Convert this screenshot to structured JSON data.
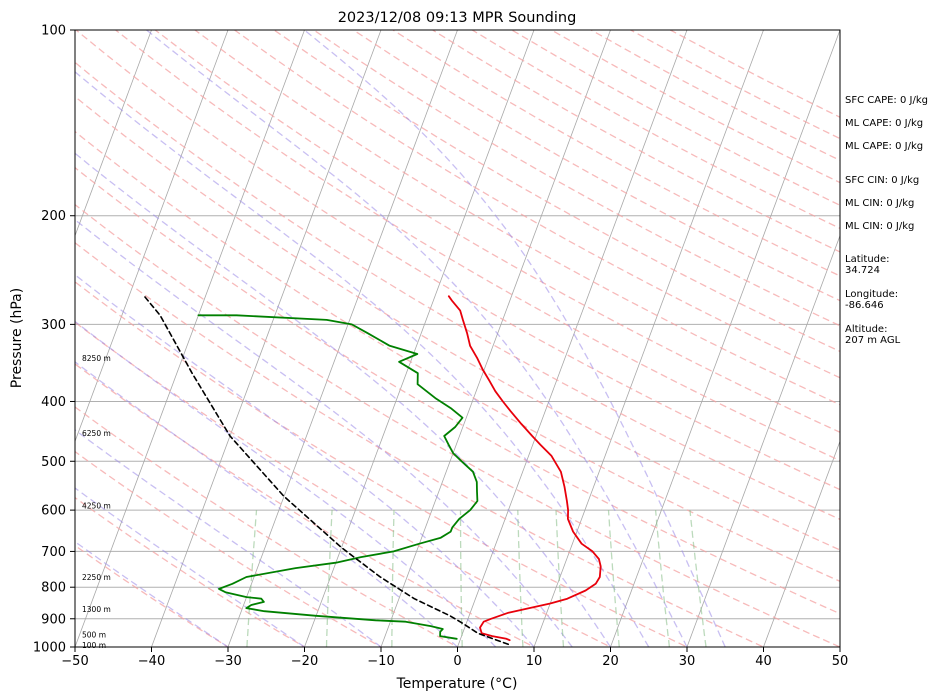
{
  "chart_data": {
    "type": "line",
    "title": "2023/12/08 09:13 MPR Sounding",
    "xlabel": "Temperature (°C)",
    "ylabel": "Pressure (hPa)",
    "xlim": [
      -50,
      50
    ],
    "ylim": [
      1000,
      100
    ],
    "y_scale": "log",
    "grid": true,
    "x_ticks": [
      -50,
      -40,
      -30,
      -20,
      -10,
      0,
      10,
      20,
      30,
      40,
      50
    ],
    "x_tick_labels": [
      "−50",
      "−40",
      "−30",
      "−20",
      "−10",
      "0",
      "10",
      "20",
      "30",
      "40",
      "50"
    ],
    "y_ticks": [
      100,
      200,
      300,
      400,
      500,
      600,
      700,
      800,
      900,
      1000
    ],
    "y_tick_labels": [
      "100",
      "200",
      "300",
      "400",
      "500",
      "600",
      "700",
      "800",
      "900",
      "1000"
    ],
    "series": [
      {
        "role": "temperature",
        "color": "#e8000b",
        "points": [
          [
            6.5,
            975
          ],
          [
            6.0,
            970
          ],
          [
            4.0,
            960
          ],
          [
            2.5,
            950
          ],
          [
            2.0,
            930
          ],
          [
            2.2,
            910
          ],
          [
            3.0,
            900
          ],
          [
            5.0,
            880
          ],
          [
            7.5,
            865
          ],
          [
            10.0,
            850
          ],
          [
            12.0,
            835
          ],
          [
            14.0,
            810
          ],
          [
            15.0,
            790
          ],
          [
            15.2,
            770
          ],
          [
            14.8,
            740
          ],
          [
            14.2,
            720
          ],
          [
            13.0,
            700
          ],
          [
            11.2,
            680
          ],
          [
            9.5,
            650
          ],
          [
            8.2,
            620
          ],
          [
            7.8,
            600
          ],
          [
            7.2,
            580
          ],
          [
            6.2,
            550
          ],
          [
            5.0,
            520
          ],
          [
            3.0,
            490
          ],
          [
            1.0,
            470
          ],
          [
            -0.5,
            455
          ],
          [
            -2.5,
            435
          ],
          [
            -4.5,
            415
          ],
          [
            -6.0,
            400
          ],
          [
            -7.5,
            385
          ],
          [
            -8.8,
            370
          ],
          [
            -10.2,
            355
          ],
          [
            -11.5,
            340
          ],
          [
            -13.0,
            325
          ],
          [
            -14.0,
            310
          ],
          [
            -15.2,
            295
          ],
          [
            -16.0,
            285
          ],
          [
            -17.5,
            275
          ],
          [
            -18.2,
            270
          ]
        ]
      },
      {
        "role": "dewpoint",
        "color": "#008000",
        "points": [
          [
            -0.5,
            970
          ],
          [
            -2.8,
            960
          ],
          [
            -3.0,
            945
          ],
          [
            -2.8,
            935
          ],
          [
            -4.5,
            925
          ],
          [
            -8.0,
            910
          ],
          [
            -12.0,
            905
          ],
          [
            -20.0,
            890
          ],
          [
            -27.0,
            875
          ],
          [
            -29.5,
            865
          ],
          [
            -29.0,
            855
          ],
          [
            -27.5,
            845
          ],
          [
            -28.0,
            835
          ],
          [
            -30.0,
            830
          ],
          [
            -33.0,
            815
          ],
          [
            -34.0,
            805
          ],
          [
            -32.5,
            790
          ],
          [
            -31.0,
            770
          ],
          [
            -25.0,
            745
          ],
          [
            -20.0,
            730
          ],
          [
            -17.0,
            715
          ],
          [
            -13.0,
            700
          ],
          [
            -10.0,
            680
          ],
          [
            -7.5,
            665
          ],
          [
            -6.5,
            650
          ],
          [
            -6.5,
            640
          ],
          [
            -6.0,
            620
          ],
          [
            -5.0,
            600
          ],
          [
            -4.5,
            580
          ],
          [
            -5.0,
            560
          ],
          [
            -5.5,
            540
          ],
          [
            -6.5,
            520
          ],
          [
            -8.5,
            500
          ],
          [
            -10.0,
            485
          ],
          [
            -11.0,
            470
          ],
          [
            -12.0,
            455
          ],
          [
            -11.0,
            440
          ],
          [
            -10.5,
            425
          ],
          [
            -12.5,
            410
          ],
          [
            -15.0,
            395
          ],
          [
            -18.0,
            375
          ],
          [
            -18.5,
            360
          ],
          [
            -21.5,
            345
          ],
          [
            -19.5,
            335
          ],
          [
            -23.5,
            325
          ],
          [
            -27.0,
            310
          ],
          [
            -29.5,
            300
          ],
          [
            -33.0,
            295
          ],
          [
            -45.0,
            290
          ],
          [
            -50.0,
            290
          ]
        ]
      },
      {
        "role": "parcel",
        "color": "#000000",
        "dash": true,
        "points": [
          [
            6.5,
            990
          ],
          [
            2.0,
            950
          ],
          [
            -0.5,
            915
          ],
          [
            -2.5,
            890
          ],
          [
            -8.0,
            835
          ],
          [
            -13.5,
            770
          ],
          [
            -20.0,
            690
          ],
          [
            -30.0,
            570
          ],
          [
            -40.0,
            455
          ],
          [
            -48.0,
            360
          ],
          [
            -55.0,
            290
          ],
          [
            -58.0,
            270
          ]
        ]
      }
    ],
    "height_labels": [
      {
        "text": "100 m",
        "p": 993
      },
      {
        "text": "500 m",
        "p": 955
      },
      {
        "text": "1300 m",
        "p": 868
      },
      {
        "text": "2250 m",
        "p": 770
      },
      {
        "text": "4250 m",
        "p": 590
      },
      {
        "text": "6250 m",
        "p": 450
      },
      {
        "text": "8250 m",
        "p": 340
      }
    ],
    "info_panel": [
      {
        "lines": [
          "SFC CAPE: 0 J/kg"
        ]
      },
      {
        "lines": [
          "ML CAPE: 0 J/kg"
        ]
      },
      {
        "lines": [
          "ML CAPE: 0 J/kg"
        ]
      },
      {
        "lines": [
          "SFC CIN: 0 J/kg"
        ]
      },
      {
        "lines": [
          "ML CIN: 0 J/kg"
        ]
      },
      {
        "lines": [
          "ML CIN: 0 J/kg"
        ]
      },
      {
        "lines": [
          "Latitude:",
          "34.724"
        ]
      },
      {
        "lines": [
          "Longitude:",
          "-86.646"
        ]
      },
      {
        "lines": [
          "Altitude:",
          "207 m AGL"
        ]
      }
    ]
  }
}
